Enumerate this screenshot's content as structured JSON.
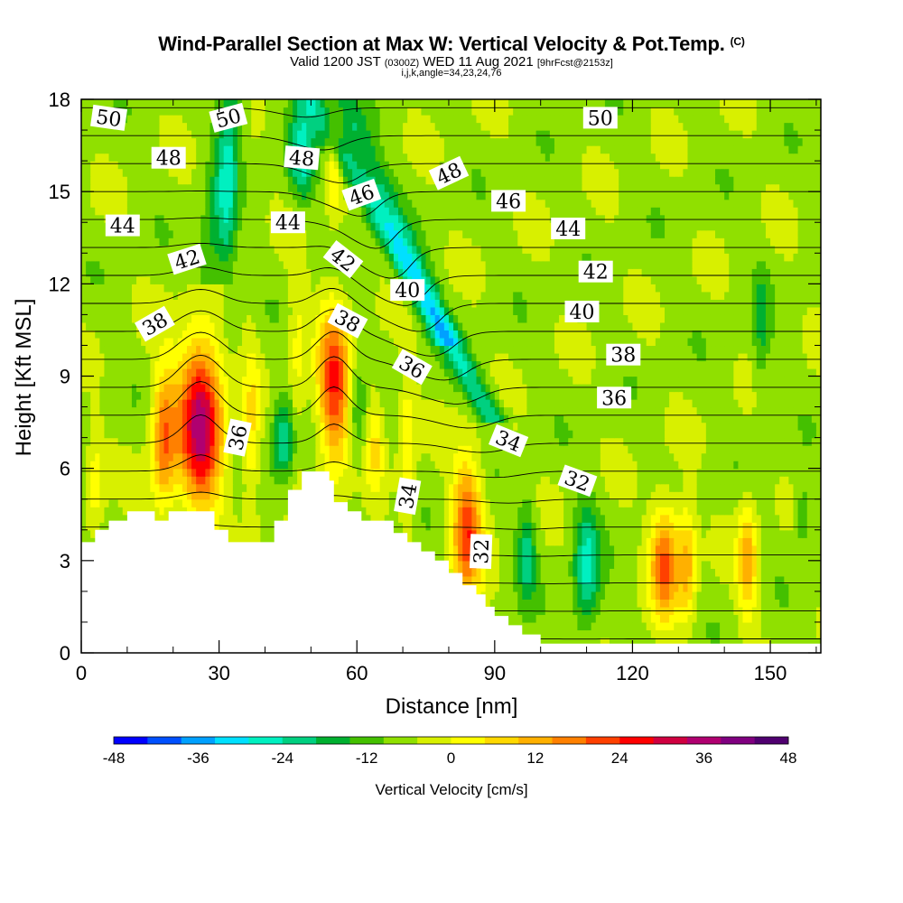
{
  "chart_data": {
    "type": "heatmap",
    "title": "Wind-Parallel Section at Max W: Vertical Velocity & Pot.Temp.",
    "title_mark": "(C)",
    "subtitle_main": "Valid 1200 JST",
    "subtitle_z": "(0300Z)",
    "subtitle_date": "WED 11 Aug 2021",
    "subtitle_fcst": "[9hrFcst@2153z]",
    "index_line": "i,j,k,angle=34,23,24,76",
    "xlabel": "Distance [nm]",
    "ylabel": "Height [Kft MSL]",
    "xlim": [
      0,
      161
    ],
    "ylim": [
      0,
      18
    ],
    "xticks": [
      "0",
      "30",
      "60",
      "90",
      "120",
      "150"
    ],
    "yticks": [
      "0",
      "3",
      "6",
      "9",
      "12",
      "15",
      "18"
    ],
    "colorbar": {
      "label": "Vertical Velocity [cm/s]",
      "tick_labels": [
        "-48",
        "-36",
        "-24",
        "-12",
        "0",
        "12",
        "24",
        "36",
        "48"
      ],
      "levels": [
        -48,
        -42,
        -36,
        -30,
        -24,
        -18,
        -12,
        -6,
        0,
        6,
        12,
        18,
        24,
        30,
        36,
        42,
        48
      ],
      "colors": [
        "#0000ff",
        "#0050ff",
        "#00a0ff",
        "#00e0ff",
        "#00f0c0",
        "#00d080",
        "#00b030",
        "#44c000",
        "#90e000",
        "#d8f000",
        "#ffff00",
        "#ffd800",
        "#ffb000",
        "#ff8000",
        "#ff4000",
        "#ff0000",
        "#d00040",
        "#b00070",
        "#800080",
        "#500070"
      ]
    },
    "updrafts": [
      {
        "x": 3,
        "y_bot": 3.6,
        "y_top": 7.5,
        "w": 12
      },
      {
        "x": 18,
        "y_bot": 4.5,
        "y_top": 9.5,
        "w": 30
      },
      {
        "x": 26,
        "y_bot": 4.5,
        "y_top": 10.5,
        "w": 52
      },
      {
        "x": 37,
        "y_bot": 3.6,
        "y_top": 10.5,
        "w": 14
      },
      {
        "x": 47,
        "y_bot": 5.8,
        "y_top": 14.0,
        "w": 10
      },
      {
        "x": 55,
        "y_bot": 5.8,
        "y_top": 11.5,
        "w": 38
      },
      {
        "x": 64,
        "y_bot": 5.0,
        "y_top": 9.0,
        "w": 14
      },
      {
        "x": 71,
        "y_bot": 4.0,
        "y_top": 9.5,
        "w": 14
      },
      {
        "x": 84,
        "y_bot": 1.5,
        "y_top": 6.5,
        "w": 36
      },
      {
        "x": 55,
        "y_bot": 14.0,
        "y_top": 18.0,
        "w": 14
      },
      {
        "x": 127,
        "y_bot": 1.0,
        "y_top": 5.0,
        "w": 34
      },
      {
        "x": 132,
        "y_bot": 1.0,
        "y_top": 5.0,
        "w": 22
      },
      {
        "x": 145,
        "y_bot": 1.0,
        "y_top": 5.0,
        "w": 24
      }
    ],
    "downdrafts": [
      {
        "x": 32,
        "y_bot": 11.0,
        "y_top": 18.0,
        "w": -12
      },
      {
        "x": 44,
        "y_bot": 5.5,
        "y_top": 8.5,
        "w": -22
      },
      {
        "x": 48,
        "y_bot": 14.5,
        "y_top": 18.0,
        "w": -24
      },
      {
        "x": 60,
        "y_bot": 6.0,
        "y_top": 9.5,
        "w": -12
      },
      {
        "x": 97,
        "y_bot": 1.5,
        "y_top": 5.0,
        "w": -18
      },
      {
        "x": 110,
        "y_bot": 0.5,
        "y_top": 5.0,
        "w": -24
      },
      {
        "x": 148,
        "y_bot": 8.0,
        "y_top": 13.0,
        "w": -10
      },
      {
        "x": 157,
        "y_bot": 3.0,
        "y_top": 6.0,
        "w": -10
      }
    ],
    "slanted_downdrafts": [
      {
        "y0": 18,
        "x0": 50,
        "y1": 7.5,
        "x1": 90,
        "w": -20
      },
      {
        "y0": 18,
        "x0": 57,
        "y1": 10,
        "x1": 80,
        "w": -14
      },
      {
        "y0": 18,
        "x0": 33,
        "y1": 12,
        "x1": 28,
        "w": -14
      }
    ],
    "pot_temp_contours": [
      31,
      32,
      33,
      34,
      35,
      36,
      37,
      38,
      39,
      40,
      41,
      42,
      43,
      44,
      45,
      46,
      47,
      48,
      49,
      50,
      51
    ],
    "contour_labels": [
      {
        "text": "50",
        "x": 6,
        "y": 17.4,
        "angle": 8
      },
      {
        "text": "50",
        "x": 32,
        "y": 17.4,
        "angle": -15
      },
      {
        "text": "50",
        "x": 113,
        "y": 17.4,
        "angle": 0
      },
      {
        "text": "48",
        "x": 19,
        "y": 16.1,
        "angle": 0
      },
      {
        "text": "48",
        "x": 48,
        "y": 16.1,
        "angle": 5
      },
      {
        "text": "48",
        "x": 80,
        "y": 15.6,
        "angle": -25
      },
      {
        "text": "46",
        "x": 61,
        "y": 14.9,
        "angle": -20
      },
      {
        "text": "46",
        "x": 93,
        "y": 14.7,
        "angle": 0
      },
      {
        "text": "44",
        "x": 9,
        "y": 13.9,
        "angle": 0
      },
      {
        "text": "44",
        "x": 45,
        "y": 14.0,
        "angle": 0
      },
      {
        "text": "44",
        "x": 106,
        "y": 13.8,
        "angle": 0
      },
      {
        "text": "42",
        "x": 23,
        "y": 12.8,
        "angle": -18
      },
      {
        "text": "42",
        "x": 57,
        "y": 12.8,
        "angle": 38
      },
      {
        "text": "42",
        "x": 112,
        "y": 12.4,
        "angle": 0
      },
      {
        "text": "40",
        "x": 71,
        "y": 11.8,
        "angle": 0
      },
      {
        "text": "40",
        "x": 109,
        "y": 11.1,
        "angle": 0
      },
      {
        "text": "38",
        "x": 16,
        "y": 10.7,
        "angle": -30
      },
      {
        "text": "38",
        "x": 58,
        "y": 10.8,
        "angle": 28
      },
      {
        "text": "38",
        "x": 118,
        "y": 9.7,
        "angle": 0
      },
      {
        "text": "36",
        "x": 72,
        "y": 9.3,
        "angle": 30
      },
      {
        "text": "36",
        "x": 116,
        "y": 8.3,
        "angle": 0
      },
      {
        "text": "36",
        "x": 34,
        "y": 7.0,
        "angle": -78
      },
      {
        "text": "34",
        "x": 93,
        "y": 6.9,
        "angle": 22
      },
      {
        "text": "34",
        "x": 71,
        "y": 5.1,
        "angle": -80
      },
      {
        "text": "32",
        "x": 108,
        "y": 5.6,
        "angle": 20
      },
      {
        "text": "32",
        "x": 87,
        "y": 3.3,
        "angle": -88
      }
    ],
    "terrain_height_kft": [
      [
        0,
        3.6
      ],
      [
        3,
        3.6
      ],
      [
        3,
        4.0
      ],
      [
        6,
        4.0
      ],
      [
        6,
        4.3
      ],
      [
        10,
        4.3
      ],
      [
        10,
        4.6
      ],
      [
        16,
        4.6
      ],
      [
        16,
        4.3
      ],
      [
        19,
        4.3
      ],
      [
        19,
        4.6
      ],
      [
        29,
        4.6
      ],
      [
        29,
        4.0
      ],
      [
        32,
        4.0
      ],
      [
        32,
        3.6
      ],
      [
        42,
        3.6
      ],
      [
        42,
        4.3
      ],
      [
        45,
        4.3
      ],
      [
        45,
        5.3
      ],
      [
        48,
        5.3
      ],
      [
        48,
        5.9
      ],
      [
        54,
        5.9
      ],
      [
        54,
        5.6
      ],
      [
        55,
        5.6
      ],
      [
        55,
        4.9
      ],
      [
        58,
        4.9
      ],
      [
        58,
        4.6
      ],
      [
        61,
        4.6
      ],
      [
        61,
        4.3
      ],
      [
        68,
        4.3
      ],
      [
        68,
        3.9
      ],
      [
        71,
        3.9
      ],
      [
        71,
        3.6
      ],
      [
        74,
        3.6
      ],
      [
        74,
        3.3
      ],
      [
        77,
        3.3
      ],
      [
        77,
        3.0
      ],
      [
        80,
        3.0
      ],
      [
        80,
        2.6
      ],
      [
        83,
        2.6
      ],
      [
        83,
        2.2
      ],
      [
        86,
        2.2
      ],
      [
        86,
        1.9
      ],
      [
        88,
        1.9
      ],
      [
        88,
        1.5
      ],
      [
        90,
        1.5
      ],
      [
        90,
        1.2
      ],
      [
        93,
        1.2
      ],
      [
        93,
        0.9
      ],
      [
        96,
        0.9
      ],
      [
        96,
        0.6
      ],
      [
        100,
        0.6
      ],
      [
        100,
        0.3
      ],
      [
        161,
        0.3
      ]
    ]
  }
}
